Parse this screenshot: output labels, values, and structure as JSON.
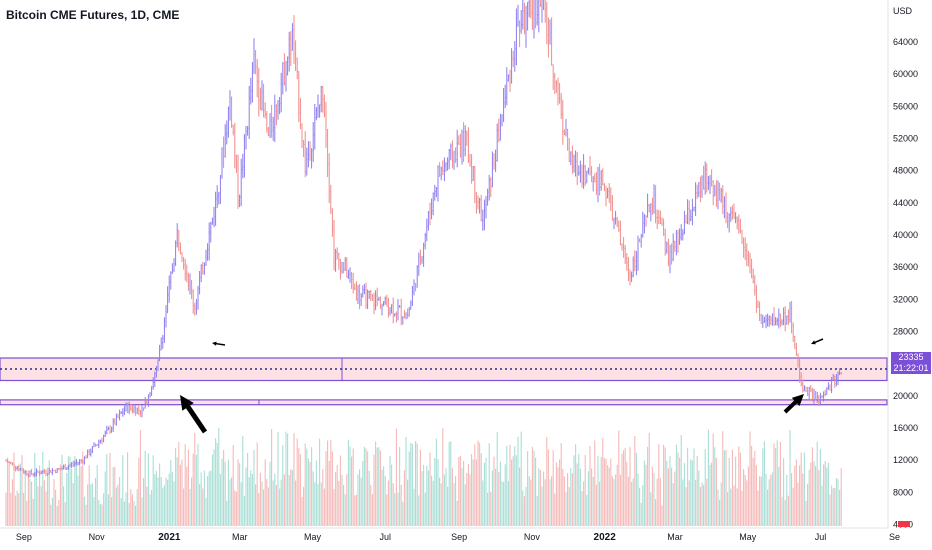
{
  "header": {
    "title": "Bitcoin CME Futures, 1D, CME"
  },
  "price_scale": {
    "unit": "USD",
    "last_price": "23335",
    "countdown": "21:22:01"
  },
  "colors": {
    "up": "#8a7df0",
    "down": "#f08a8a",
    "vol_up": "#a8ded6",
    "vol_down": "#f6b8b8",
    "zone_fill": "#fcd7dc",
    "zone_border": "#7b4fd6",
    "badge": "#7b4fd6"
  },
  "chart_data": {
    "type": "candlestick",
    "y_axis": {
      "range": [
        2000,
        69000
      ],
      "ticks": [
        "64000",
        "60000",
        "56000",
        "52000",
        "48000",
        "44000",
        "40000",
        "36000",
        "32000",
        "28000",
        "20000",
        "16000",
        "12000",
        "8000",
        "4000"
      ]
    },
    "x_axis": {
      "ticks": [
        "Sep",
        "Nov",
        "2021",
        "Mar",
        "May",
        "Jul",
        "Sep",
        "Nov",
        "2022",
        "Mar",
        "May",
        "Jul",
        "Se"
      ],
      "bold_ticks": [
        "2021",
        "2022"
      ]
    },
    "price_path": [
      [
        "2020-08-17",
        11900
      ],
      [
        "2020-09-05",
        10300
      ],
      [
        "2020-09-30",
        10800
      ],
      [
        "2020-10-20",
        12000
      ],
      [
        "2020-11-10",
        15500
      ],
      [
        "2020-11-26",
        18600
      ],
      [
        "2020-12-10",
        18200
      ],
      [
        "2020-12-22",
        23500
      ],
      [
        "2021-01-08",
        40500
      ],
      [
        "2021-01-22",
        31000
      ],
      [
        "2021-02-10",
        45000
      ],
      [
        "2021-02-21",
        57000
      ],
      [
        "2021-02-28",
        44500
      ],
      [
        "2021-03-13",
        61500
      ],
      [
        "2021-03-25",
        52000
      ],
      [
        "2021-04-14",
        64800
      ],
      [
        "2021-04-25",
        48500
      ],
      [
        "2021-05-10",
        58500
      ],
      [
        "2021-05-19",
        37500
      ],
      [
        "2021-05-28",
        36000
      ],
      [
        "2021-06-08",
        32500
      ],
      [
        "2021-06-22",
        32000
      ],
      [
        "2021-07-20",
        30000
      ],
      [
        "2021-08-14",
        47500
      ],
      [
        "2021-09-06",
        52000
      ],
      [
        "2021-09-21",
        41500
      ],
      [
        "2021-10-20",
        66000
      ],
      [
        "2021-11-10",
        69000
      ],
      [
        "2021-11-24",
        56500
      ],
      [
        "2021-12-04",
        48500
      ],
      [
        "2021-12-31",
        46500
      ],
      [
        "2022-01-22",
        35000
      ],
      [
        "2022-02-10",
        44500
      ],
      [
        "2022-02-24",
        37000
      ],
      [
        "2022-03-28",
        47500
      ],
      [
        "2022-04-30",
        38500
      ],
      [
        "2022-05-12",
        29000
      ],
      [
        "2022-06-06",
        30000
      ],
      [
        "2022-06-14",
        21500
      ],
      [
        "2022-06-30",
        19200
      ],
      [
        "2022-07-19",
        23335
      ]
    ],
    "support_zones": [
      {
        "from": 21900,
        "to": 24700
      },
      {
        "from": 18900,
        "to": 19500
      }
    ],
    "last_price_line": 23335
  }
}
